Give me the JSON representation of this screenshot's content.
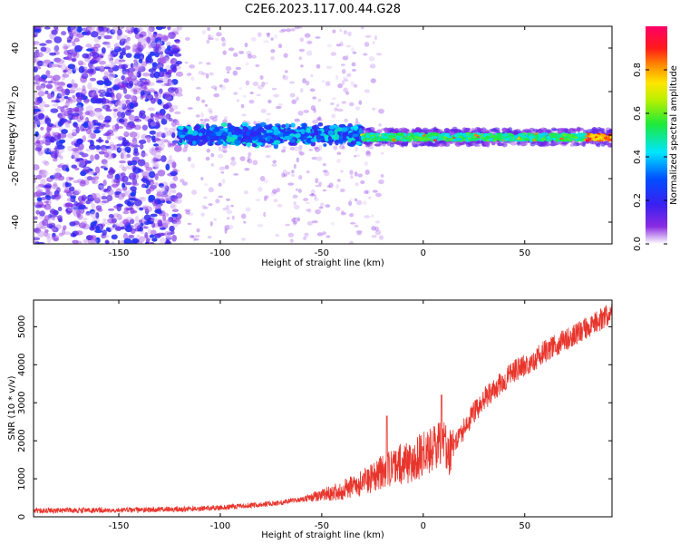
{
  "title": "C2E6.2023.117.00.44.G28",
  "chart_data": [
    {
      "type": "heatmap",
      "xlabel": "Height of straight line (km)",
      "ylabel": "Frequency (Hz)",
      "xlim": [
        -192,
        93
      ],
      "ylim": [
        -50,
        50
      ],
      "xticks": [
        -150,
        -100,
        -50,
        0,
        50
      ],
      "yticks": [
        -40,
        -20,
        0,
        20,
        40
      ],
      "colorbar": {
        "label": "Normalized spectral amplitude",
        "range": [
          0.0,
          1.0
        ],
        "ticks": [
          0.0,
          0.2,
          0.4,
          0.6,
          0.8
        ],
        "tick_labels": [
          "0.0",
          "0.2",
          "0.4",
          "0.6",
          "0.8"
        ],
        "colormap": "rainbow: white-violet-blue-cyan-green-yellow-orange-red-magenta"
      },
      "features": [
        {
          "x_range": [
            -192,
            -120
          ],
          "freq_range": [
            -50,
            50
          ],
          "amplitude": "0.1-0.25 scattered"
        },
        {
          "x_range": [
            -120,
            -30
          ],
          "freq_center": 0,
          "freq_halfwidth": 4,
          "amplitude": "0.2-0.45"
        },
        {
          "x_range": [
            -30,
            93
          ],
          "freq_center": -1,
          "freq_halfwidth": 2,
          "amplitude": "0.4-0.95"
        }
      ]
    },
    {
      "type": "line",
      "xlabel": "Height of straight line (km)",
      "ylabel": "SNR (10 * v/v)",
      "xlim": [
        -192,
        93
      ],
      "ylim": [
        0,
        5700
      ],
      "xticks": [
        -150,
        -100,
        -50,
        0,
        50
      ],
      "yticks": [
        0,
        1000,
        2000,
        3000,
        4000,
        5000
      ],
      "color": "#e8352c",
      "series": [
        {
          "x": [
            -192,
            -180,
            -170,
            -160,
            -150,
            -140,
            -130,
            -120,
            -110,
            -100,
            -90,
            -80,
            -70,
            -60,
            -50,
            -40,
            -30,
            -25,
            -20,
            -15,
            -10,
            -5,
            0,
            5,
            8,
            10,
            12,
            15,
            20,
            25,
            30,
            35,
            40,
            45,
            50,
            55,
            60,
            65,
            70,
            75,
            80,
            85,
            90,
            93
          ],
          "y": [
            160,
            170,
            170,
            170,
            180,
            180,
            190,
            200,
            220,
            240,
            280,
            320,
            380,
            460,
            560,
            700,
            900,
            1050,
            1200,
            1300,
            1400,
            1500,
            1650,
            1800,
            1950,
            2100,
            1600,
            1950,
            2300,
            2750,
            3100,
            3350,
            3600,
            3850,
            4000,
            4150,
            4350,
            4500,
            4650,
            4800,
            4950,
            5100,
            5300,
            5300
          ]
        }
      ],
      "spikes": [
        {
          "x": -18,
          "y": 2650
        },
        {
          "x": 9,
          "y": 3200
        }
      ]
    }
  ]
}
